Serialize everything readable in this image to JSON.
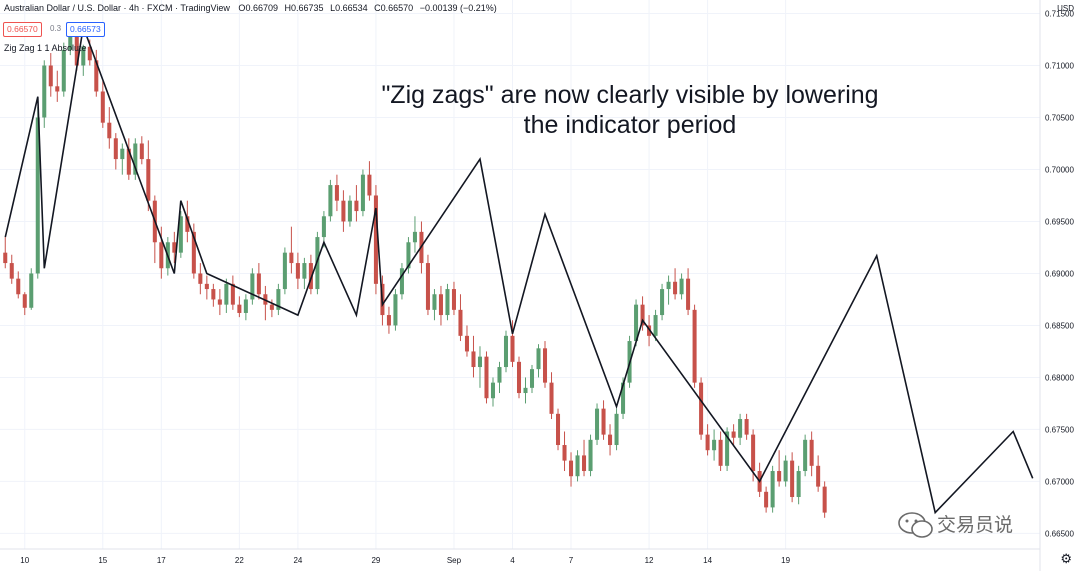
{
  "header": {
    "symbol_title": "Australian Dollar / U.S. Dollar · 4h · FXCM · TradingView",
    "ohlc": [
      {
        "label": "O",
        "value": "0.66709"
      },
      {
        "label": "H",
        "value": "0.66735"
      },
      {
        "label": "L",
        "value": "0.66534"
      },
      {
        "label": "C",
        "value": "0.66570"
      },
      {
        "label": "",
        "value": "−0.00139 (−0.21%)"
      }
    ],
    "sell_price": "0.66570",
    "spread": "0.3",
    "buy_price": "0.66573"
  },
  "indicator_label": "Zig Zag 1 1 Absolute",
  "currency": "USD",
  "annotation": "\"Zig zags\" are now clearly visible by lowering the indicator period",
  "watermark": "交易员说",
  "colors": {
    "up": "#5b9e71",
    "down": "#c7514a",
    "zigzag": "#131722",
    "grid": "#f0f3fa",
    "text": "#131722"
  },
  "chart_data": {
    "type": "candlestick",
    "title": "Australian Dollar / U.S. Dollar · 4h · FXCM · TradingView",
    "y_ticks": [
      "0.66500",
      "0.67000",
      "0.67500",
      "0.68000",
      "0.68500",
      "0.69000",
      "0.69500",
      "0.70000",
      "0.70500",
      "0.71000",
      "0.71500"
    ],
    "ylim": [
      0.6635,
      0.7163
    ],
    "x_ticks": [
      {
        "label": "10",
        "t": 3
      },
      {
        "label": "15",
        "t": 15
      },
      {
        "label": "17",
        "t": 24
      },
      {
        "label": "22",
        "t": 36
      },
      {
        "label": "24",
        "t": 45
      },
      {
        "label": "29",
        "t": 57
      },
      {
        "label": "Sep",
        "t": 69
      },
      {
        "label": "4",
        "t": 78
      },
      {
        "label": "7",
        "t": 87
      },
      {
        "label": "12",
        "t": 99
      },
      {
        "label": "14",
        "t": 108
      },
      {
        "label": "19",
        "t": 120
      }
    ],
    "candles": [
      [
        0.692,
        0.6935,
        0.6905,
        0.691
      ],
      [
        0.691,
        0.6918,
        0.689,
        0.6895
      ],
      [
        0.6895,
        0.6902,
        0.6876,
        0.688
      ],
      [
        0.688,
        0.6882,
        0.686,
        0.6867
      ],
      [
        0.6867,
        0.6905,
        0.6865,
        0.69
      ],
      [
        0.69,
        0.706,
        0.6895,
        0.705
      ],
      [
        0.705,
        0.7105,
        0.704,
        0.71
      ],
      [
        0.71,
        0.7112,
        0.707,
        0.708
      ],
      [
        0.708,
        0.7095,
        0.7065,
        0.7075
      ],
      [
        0.7075,
        0.7122,
        0.707,
        0.7115
      ],
      [
        0.7115,
        0.7138,
        0.711,
        0.713
      ],
      [
        0.713,
        0.7133,
        0.7095,
        0.71
      ],
      [
        0.71,
        0.712,
        0.709,
        0.7118
      ],
      [
        0.7118,
        0.7125,
        0.71,
        0.7105
      ],
      [
        0.7105,
        0.7115,
        0.707,
        0.7075
      ],
      [
        0.7075,
        0.7085,
        0.704,
        0.7045
      ],
      [
        0.7045,
        0.706,
        0.702,
        0.703
      ],
      [
        0.703,
        0.7035,
        0.7,
        0.701
      ],
      [
        0.701,
        0.7025,
        0.6995,
        0.702
      ],
      [
        0.702,
        0.703,
        0.699,
        0.6995
      ],
      [
        0.6995,
        0.703,
        0.699,
        0.7025
      ],
      [
        0.7025,
        0.7032,
        0.7005,
        0.701
      ],
      [
        0.701,
        0.7028,
        0.696,
        0.697
      ],
      [
        0.697,
        0.6975,
        0.691,
        0.693
      ],
      [
        0.693,
        0.6945,
        0.6895,
        0.6905
      ],
      [
        0.6905,
        0.6935,
        0.6898,
        0.693
      ],
      [
        0.693,
        0.694,
        0.691,
        0.692
      ],
      [
        0.692,
        0.696,
        0.6915,
        0.6955
      ],
      [
        0.6955,
        0.697,
        0.693,
        0.694
      ],
      [
        0.694,
        0.6948,
        0.6895,
        0.69
      ],
      [
        0.69,
        0.691,
        0.688,
        0.689
      ],
      [
        0.689,
        0.6898,
        0.6875,
        0.6885
      ],
      [
        0.6885,
        0.689,
        0.6868,
        0.6875
      ],
      [
        0.6875,
        0.6885,
        0.686,
        0.687
      ],
      [
        0.687,
        0.6895,
        0.6862,
        0.689
      ],
      [
        0.689,
        0.6898,
        0.6865,
        0.687
      ],
      [
        0.687,
        0.6878,
        0.6858,
        0.6862
      ],
      [
        0.6862,
        0.688,
        0.6855,
        0.6875
      ],
      [
        0.6875,
        0.6905,
        0.687,
        0.69
      ],
      [
        0.69,
        0.691,
        0.6875,
        0.688
      ],
      [
        0.688,
        0.6888,
        0.6855,
        0.687
      ],
      [
        0.687,
        0.6875,
        0.6858,
        0.6865
      ],
      [
        0.6865,
        0.689,
        0.686,
        0.6885
      ],
      [
        0.6885,
        0.6925,
        0.688,
        0.692
      ],
      [
        0.692,
        0.6945,
        0.69,
        0.691
      ],
      [
        0.691,
        0.692,
        0.6885,
        0.6895
      ],
      [
        0.6895,
        0.6915,
        0.6885,
        0.691
      ],
      [
        0.691,
        0.6918,
        0.688,
        0.6885
      ],
      [
        0.6885,
        0.694,
        0.688,
        0.6935
      ],
      [
        0.6935,
        0.696,
        0.6925,
        0.6955
      ],
      [
        0.6955,
        0.699,
        0.695,
        0.6985
      ],
      [
        0.6985,
        0.6995,
        0.696,
        0.697
      ],
      [
        0.697,
        0.698,
        0.694,
        0.695
      ],
      [
        0.695,
        0.6975,
        0.6945,
        0.697
      ],
      [
        0.697,
        0.6985,
        0.695,
        0.696
      ],
      [
        0.696,
        0.7,
        0.6955,
        0.6995
      ],
      [
        0.6995,
        0.7008,
        0.697,
        0.6975
      ],
      [
        0.6975,
        0.6985,
        0.688,
        0.689
      ],
      [
        0.689,
        0.6898,
        0.685,
        0.686
      ],
      [
        0.686,
        0.6868,
        0.6842,
        0.685
      ],
      [
        0.685,
        0.6885,
        0.6845,
        0.688
      ],
      [
        0.688,
        0.691,
        0.6875,
        0.6905
      ],
      [
        0.6905,
        0.6935,
        0.69,
        0.693
      ],
      [
        0.693,
        0.6955,
        0.692,
        0.694
      ],
      [
        0.694,
        0.695,
        0.69,
        0.691
      ],
      [
        0.691,
        0.6918,
        0.686,
        0.6865
      ],
      [
        0.6865,
        0.6885,
        0.6855,
        0.688
      ],
      [
        0.688,
        0.6888,
        0.685,
        0.686
      ],
      [
        0.686,
        0.689,
        0.6855,
        0.6885
      ],
      [
        0.6885,
        0.6892,
        0.686,
        0.6865
      ],
      [
        0.6865,
        0.688,
        0.6835,
        0.684
      ],
      [
        0.684,
        0.685,
        0.682,
        0.6825
      ],
      [
        0.6825,
        0.684,
        0.68,
        0.681
      ],
      [
        0.681,
        0.683,
        0.679,
        0.682
      ],
      [
        0.682,
        0.6825,
        0.6775,
        0.678
      ],
      [
        0.678,
        0.68,
        0.6772,
        0.6795
      ],
      [
        0.6795,
        0.6815,
        0.6785,
        0.681
      ],
      [
        0.681,
        0.6845,
        0.6805,
        0.684
      ],
      [
        0.684,
        0.6855,
        0.681,
        0.6815
      ],
      [
        0.6815,
        0.682,
        0.678,
        0.6785
      ],
      [
        0.6785,
        0.68,
        0.6775,
        0.679
      ],
      [
        0.679,
        0.6812,
        0.6785,
        0.6808
      ],
      [
        0.6808,
        0.6832,
        0.68,
        0.6828
      ],
      [
        0.6828,
        0.6835,
        0.679,
        0.6795
      ],
      [
        0.6795,
        0.6805,
        0.676,
        0.6765
      ],
      [
        0.6765,
        0.677,
        0.673,
        0.6735
      ],
      [
        0.6735,
        0.6748,
        0.671,
        0.672
      ],
      [
        0.672,
        0.6728,
        0.6695,
        0.6705
      ],
      [
        0.6705,
        0.673,
        0.67,
        0.6725
      ],
      [
        0.6725,
        0.674,
        0.6705,
        0.671
      ],
      [
        0.671,
        0.6745,
        0.6705,
        0.674
      ],
      [
        0.674,
        0.6775,
        0.6735,
        0.677
      ],
      [
        0.677,
        0.6778,
        0.674,
        0.6745
      ],
      [
        0.6745,
        0.6755,
        0.6725,
        0.6735
      ],
      [
        0.6735,
        0.677,
        0.673,
        0.6765
      ],
      [
        0.6765,
        0.68,
        0.676,
        0.6795
      ],
      [
        0.6795,
        0.684,
        0.679,
        0.6835
      ],
      [
        0.6835,
        0.6875,
        0.683,
        0.687
      ],
      [
        0.687,
        0.6878,
        0.6845,
        0.685
      ],
      [
        0.685,
        0.686,
        0.683,
        0.684
      ],
      [
        0.684,
        0.6865,
        0.6835,
        0.686
      ],
      [
        0.686,
        0.689,
        0.6855,
        0.6885
      ],
      [
        0.6885,
        0.6898,
        0.687,
        0.6892
      ],
      [
        0.6892,
        0.6905,
        0.6875,
        0.688
      ],
      [
        0.688,
        0.69,
        0.6875,
        0.6895
      ],
      [
        0.6895,
        0.6905,
        0.686,
        0.6865
      ],
      [
        0.6865,
        0.687,
        0.679,
        0.6795
      ],
      [
        0.6795,
        0.68,
        0.674,
        0.6745
      ],
      [
        0.6745,
        0.6755,
        0.6725,
        0.673
      ],
      [
        0.673,
        0.675,
        0.672,
        0.674
      ],
      [
        0.674,
        0.6748,
        0.671,
        0.6715
      ],
      [
        0.6715,
        0.6752,
        0.671,
        0.6748
      ],
      [
        0.6748,
        0.6755,
        0.6735,
        0.6742
      ],
      [
        0.6742,
        0.6765,
        0.6735,
        0.676
      ],
      [
        0.676,
        0.6765,
        0.674,
        0.6745
      ],
      [
        0.6745,
        0.675,
        0.67,
        0.671
      ],
      [
        0.671,
        0.6718,
        0.6685,
        0.669
      ],
      [
        0.669,
        0.6695,
        0.667,
        0.6675
      ],
      [
        0.6675,
        0.6715,
        0.667,
        0.671
      ],
      [
        0.671,
        0.673,
        0.6695,
        0.67
      ],
      [
        0.67,
        0.6725,
        0.6695,
        0.672
      ],
      [
        0.672,
        0.6728,
        0.668,
        0.6685
      ],
      [
        0.6685,
        0.6715,
        0.6678,
        0.671
      ],
      [
        0.671,
        0.6745,
        0.6705,
        0.674
      ],
      [
        0.674,
        0.6748,
        0.6705,
        0.6715
      ],
      [
        0.6715,
        0.6725,
        0.669,
        0.6695
      ],
      [
        0.6695,
        0.67,
        0.6665,
        0.667
      ]
    ],
    "zigzag": [
      [
        0,
        0.6935
      ],
      [
        5,
        0.707
      ],
      [
        6,
        0.6905
      ],
      [
        12,
        0.7137
      ],
      [
        26,
        0.69
      ],
      [
        27,
        0.697
      ],
      [
        31,
        0.69
      ],
      [
        45,
        0.686
      ],
      [
        49,
        0.693
      ],
      [
        54,
        0.686
      ],
      [
        57,
        0.6963
      ],
      [
        58,
        0.687
      ],
      [
        73,
        0.701
      ],
      [
        78,
        0.6842
      ],
      [
        83,
        0.6957
      ],
      [
        94,
        0.6772
      ],
      [
        98,
        0.6855
      ],
      [
        116,
        0.67
      ],
      [
        134,
        0.6917
      ],
      [
        143,
        0.667
      ],
      [
        155,
        0.6748
      ],
      [
        158,
        0.6703
      ]
    ]
  }
}
